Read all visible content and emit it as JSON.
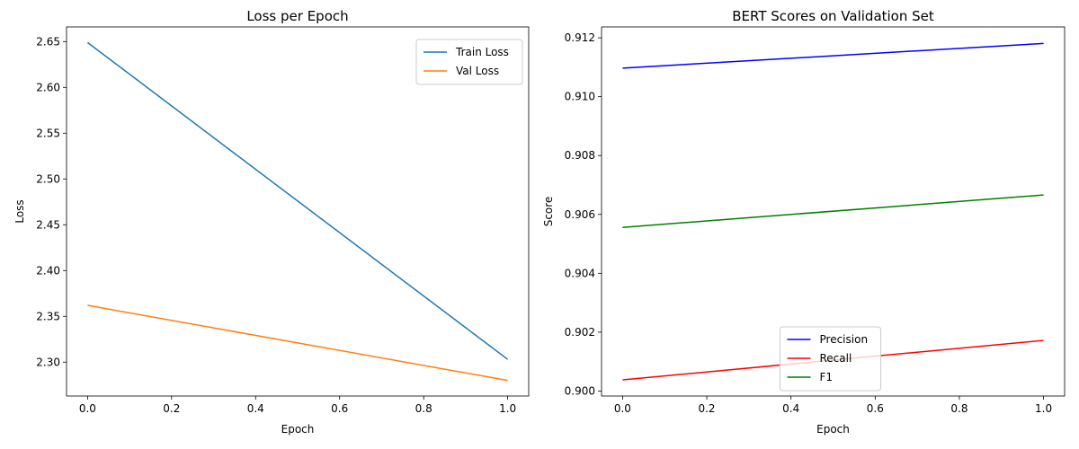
{
  "chart_data": [
    {
      "type": "line",
      "title": "Loss per Epoch",
      "xlabel": "Epoch",
      "ylabel": "Loss",
      "xlim": [
        -0.05,
        1.05
      ],
      "ylim": [
        2.263,
        2.666
      ],
      "xticks": [
        "0.0",
        "0.2",
        "0.4",
        "0.6",
        "0.8",
        "1.0"
      ],
      "yticks": [
        "2.30",
        "2.35",
        "2.40",
        "2.45",
        "2.50",
        "2.55",
        "2.60",
        "2.65"
      ],
      "grid": false,
      "legend_position": "top-right",
      "x": [
        0,
        1
      ],
      "series": [
        {
          "name": "Train Loss",
          "color": "#1f77b4",
          "values": [
            2.649,
            2.303
          ]
        },
        {
          "name": "Val Loss",
          "color": "#ff7f0e",
          "values": [
            2.362,
            2.28
          ]
        }
      ]
    },
    {
      "type": "line",
      "title": "BERT Scores on Validation Set",
      "xlabel": "Epoch",
      "ylabel": "Score",
      "xlim": [
        -0.05,
        1.05
      ],
      "ylim": [
        0.89983,
        0.91237
      ],
      "xticks": [
        "0.0",
        "0.2",
        "0.4",
        "0.6",
        "0.8",
        "1.0"
      ],
      "yticks": [
        "0.900",
        "0.902",
        "0.904",
        "0.906",
        "0.908",
        "0.910",
        "0.912"
      ],
      "grid": false,
      "legend_position": "bottom-center",
      "x": [
        0,
        1
      ],
      "series": [
        {
          "name": "Precision",
          "color": "#0000ff",
          "values": [
            0.91097,
            0.91181
          ]
        },
        {
          "name": "Recall",
          "color": "#ff0000",
          "values": [
            0.90038,
            0.90172
          ]
        },
        {
          "name": "F1",
          "color": "#008000",
          "values": [
            0.90556,
            0.90666
          ]
        }
      ]
    }
  ]
}
